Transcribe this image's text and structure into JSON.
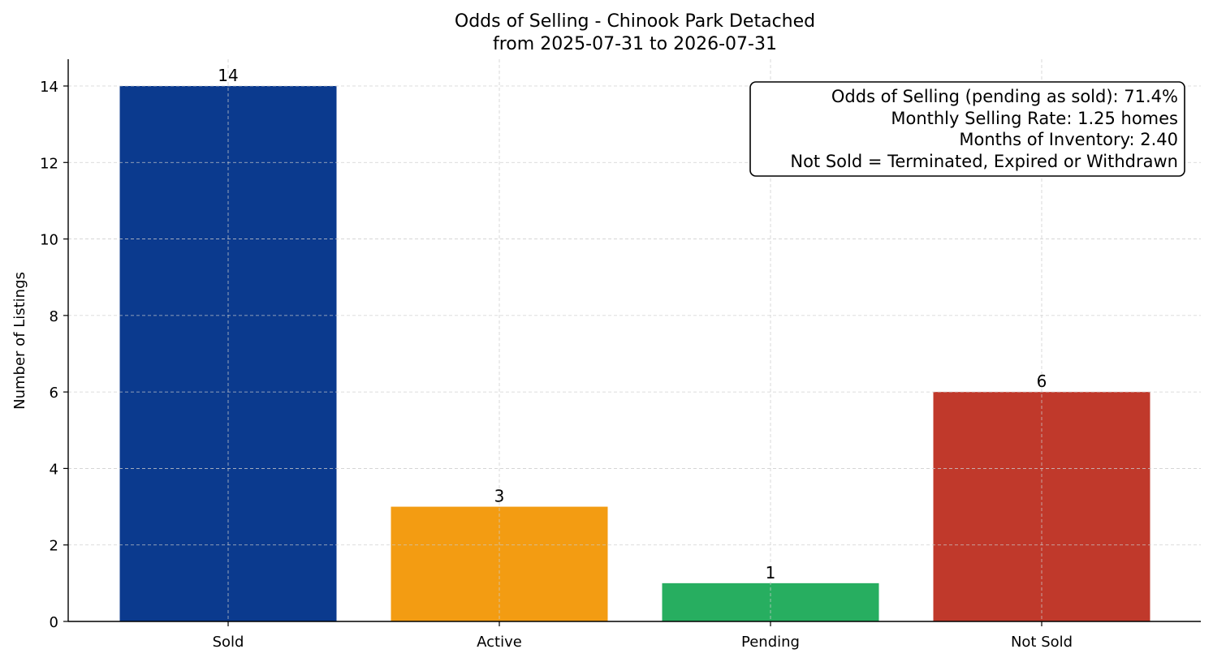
{
  "chart_data": {
    "type": "bar",
    "title": "Odds of Selling - Chinook Park Detached",
    "subtitle": "from 2025-07-31 to 2026-07-31",
    "xlabel": "",
    "ylabel": "Number of Listings",
    "categories": [
      "Sold",
      "Active",
      "Pending",
      "Not Sold"
    ],
    "values": [
      14,
      3,
      1,
      6
    ],
    "colors": [
      "#0b3a8e",
      "#f39c12",
      "#27ae60",
      "#c0392b"
    ],
    "data_labels": [
      "14",
      "3",
      "1",
      "6"
    ],
    "ylim": [
      0,
      14.7
    ],
    "yticks": [
      0,
      2,
      4,
      6,
      8,
      10,
      12,
      14
    ],
    "grid": true,
    "info_box": {
      "placement": "top-right",
      "lines": [
        "Odds of Selling (pending as sold): 71.4%",
        "Monthly Selling Rate: 1.25 homes",
        "Months of Inventory: 2.40",
        "Not Sold = Terminated, Expired or Withdrawn"
      ]
    }
  }
}
